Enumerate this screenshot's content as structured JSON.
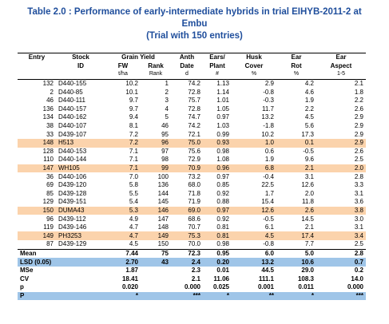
{
  "header": {
    "title": [
      "Table 2.0 : Performance of early-intermediate hybrids in trial EIHYB-2011-2 at",
      "Embu",
      "(Trial with 150 entries)"
    ]
  },
  "table": {
    "header_rows": [
      [
        "Entry",
        "Stock",
        "Grain Yield",
        null,
        "Anth",
        "Ears/",
        "Husk",
        "Ear",
        "Ear"
      ],
      [
        null,
        "ID",
        "FW",
        "Rank",
        "Date",
        "Plant",
        "Cover",
        "Rot",
        "Aspect"
      ],
      [
        null,
        null,
        "t/ha",
        "Rank",
        "d",
        "#",
        "%",
        "%",
        "1-5"
      ]
    ],
    "rows": [
      {
        "cells": [
          "132",
          "D440-155",
          "10.2",
          "1",
          "74.2",
          "1.13",
          "2.9",
          "4.2",
          "2.1"
        ]
      },
      {
        "cells": [
          "2",
          "D440-85",
          "10.1",
          "2",
          "72.8",
          "1.14",
          "-0.8",
          "4.6",
          "1.8"
        ]
      },
      {
        "cells": [
          "46",
          "D440-111",
          "9.7",
          "3",
          "75.7",
          "1.01",
          "-0.3",
          "1.9",
          "2.2"
        ]
      },
      {
        "cells": [
          "136",
          "D440-157",
          "9.7",
          "4",
          "72.8",
          "1.05",
          "11.7",
          "2.2",
          "2.6"
        ]
      },
      {
        "cells": [
          "134",
          "D440-162",
          "9.4",
          "5",
          "74.7",
          "0.97",
          "13.2",
          "4.5",
          "2.9"
        ]
      },
      {
        "cells": [
          "38",
          "D440-107",
          "8.1",
          "46",
          "74.2",
          "1.03",
          "-1.8",
          "5.6",
          "2.9"
        ]
      },
      {
        "cells": [
          "33",
          "D439-107",
          "7.2",
          "95",
          "72.1",
          "0.99",
          "10.2",
          "17.3",
          "2.9"
        ]
      },
      {
        "cells": [
          "148",
          "H513",
          "7.2",
          "96",
          "75.0",
          "0.93",
          "1.0",
          "0.1",
          "2.9"
        ],
        "shade": "#fbd3ac"
      },
      {
        "cells": [
          "128",
          "D440-153",
          "7.1",
          "97",
          "75.6",
          "0.98",
          "0.6",
          "-0.5",
          "2.6"
        ]
      },
      {
        "cells": [
          "110",
          "D440-144",
          "7.1",
          "98",
          "72.9",
          "1.08",
          "1.9",
          "9.6",
          "2.5"
        ]
      },
      {
        "cells": [
          "147",
          "WH105",
          "7.1",
          "99",
          "70.9",
          "0.96",
          "6.8",
          "2.1",
          "2.0"
        ],
        "shade": "#fbd3ac"
      },
      {
        "cells": [
          "36",
          "D440-106",
          "7.0",
          "100",
          "73.2",
          "0.97",
          "-0.4",
          "3.1",
          "2.8"
        ]
      },
      {
        "cells": [
          "69",
          "D439-120",
          "5.8",
          "136",
          "68.0",
          "0.85",
          "22.5",
          "12.6",
          "3.3"
        ]
      },
      {
        "cells": [
          "85",
          "D439-128",
          "5.5",
          "144",
          "71.8",
          "0.92",
          "1.7",
          "2.0",
          "3.1"
        ]
      },
      {
        "cells": [
          "129",
          "D439-151",
          "5.4",
          "145",
          "71.9",
          "0.88",
          "15.4",
          "11.8",
          "3.6"
        ]
      },
      {
        "cells": [
          "150",
          "DUMA43",
          "5.3",
          "146",
          "69.0",
          "0.97",
          "12.6",
          "2.6",
          "3.8"
        ],
        "shade": "#fbd3ac"
      },
      {
        "cells": [
          "96",
          "D439-112",
          "4.9",
          "147",
          "68.6",
          "0.92",
          "-0.5",
          "14.5",
          "3.0"
        ]
      },
      {
        "cells": [
          "119",
          "D439-146",
          "4.7",
          "148",
          "70.7",
          "0.81",
          "6.1",
          "2.1",
          "3.1"
        ]
      },
      {
        "cells": [
          "149",
          "PH3253",
          "4.7",
          "149",
          "75.3",
          "0.81",
          "4.5",
          "17.4",
          "3.4"
        ],
        "shade": "#fbd3ac"
      },
      {
        "cells": [
          "87",
          "D439-129",
          "4.5",
          "150",
          "70.0",
          "0.98",
          "-0.8",
          "7.7",
          "2.5"
        ]
      }
    ],
    "summary_rows": [
      {
        "cells": [
          "Mean",
          null,
          "7.44",
          "75",
          "72.3",
          "0.95",
          "6.0",
          "5.0",
          "2.8"
        ],
        "bold": true
      },
      {
        "cells": [
          "LSD (0.05)",
          null,
          "2.70",
          "43",
          "2.4",
          "0.20",
          "13.2",
          "10.6",
          "0.7"
        ],
        "bold": true,
        "shade": "#9fc5e8"
      },
      {
        "cells": [
          "MSe",
          null,
          "1.87",
          null,
          "2.3",
          "0.01",
          "44.5",
          "29.0",
          "0.2"
        ],
        "bold": true
      },
      {
        "cells": [
          "CV",
          null,
          "18.41",
          null,
          "2.1",
          "11.06",
          "111.1",
          "108.3",
          "14.0"
        ],
        "bold": true
      },
      {
        "cells": [
          "p",
          null,
          "0.020",
          null,
          "0.000",
          "0.025",
          "0.001",
          "0.011",
          "0.000"
        ],
        "bold": true
      },
      {
        "cells": [
          "P",
          null,
          "*",
          null,
          "***",
          "*",
          "**",
          "*",
          "***"
        ],
        "bold": true,
        "shade": "#9fc5e8"
      }
    ]
  }
}
